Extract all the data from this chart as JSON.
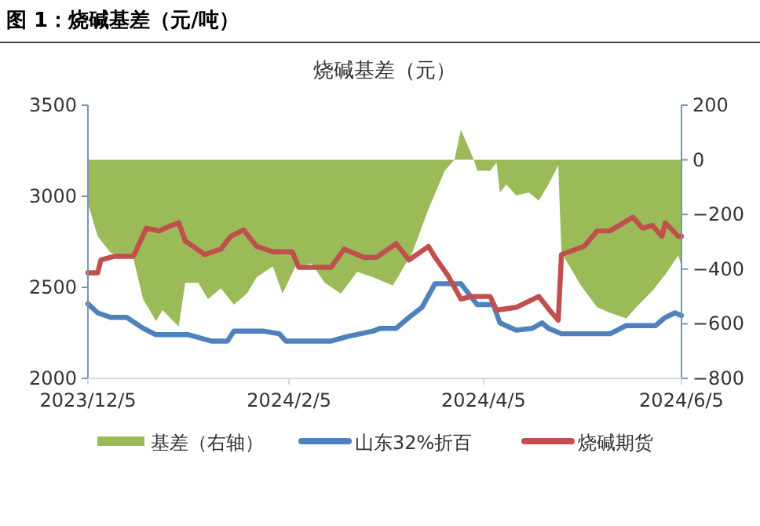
{
  "chart_data": {
    "type": "line",
    "title": "图 1：烧碱基差（元/吨）",
    "subtitle": "烧碱基差（元）",
    "xlim": [
      "2023-12-05",
      "2024-06-05"
    ],
    "xticks": [
      {
        "value": "2023-12-05",
        "label": "2023/12/5"
      },
      {
        "value": "2024-02-05",
        "label": "2024/2/5"
      },
      {
        "value": "2024-04-05",
        "label": "2024/4/5"
      },
      {
        "value": "2024-06-05",
        "label": "2024/6/5"
      }
    ],
    "ylim": [
      2000,
      3500
    ],
    "yticks": [
      2000,
      2500,
      3000,
      3500
    ],
    "y2lim": [
      -800,
      200
    ],
    "y2ticks": [
      -800,
      -600,
      -400,
      -200,
      0,
      200
    ],
    "grid": false,
    "legend": "bottom",
    "marker": "none",
    "series": [
      {
        "name": "基差（右轴）",
        "type": "area",
        "axis": "y2",
        "color": "#9bbb59",
        "x": [
          "2023-12-05",
          "2023-12-08",
          "2023-12-12",
          "2023-12-19",
          "2023-12-22",
          "2023-12-26",
          "2023-12-28",
          "2024-01-02",
          "2024-01-04",
          "2024-01-08",
          "2024-01-11",
          "2024-01-15",
          "2024-01-19",
          "2024-01-23",
          "2024-01-26",
          "2024-01-31",
          "2024-02-03",
          "2024-02-07",
          "2024-02-12",
          "2024-02-16",
          "2024-02-21",
          "2024-02-26",
          "2024-03-02",
          "2024-03-08",
          "2024-03-14",
          "2024-03-19",
          "2024-03-24",
          "2024-03-27",
          "2024-03-29",
          "2024-04-02",
          "2024-04-03",
          "2024-04-07",
          "2024-04-09",
          "2024-04-10",
          "2024-04-12",
          "2024-04-15",
          "2024-04-19",
          "2024-04-22",
          "2024-04-25",
          "2024-04-28",
          "2024-04-29",
          "2024-05-05",
          "2024-05-10",
          "2024-05-14",
          "2024-05-19",
          "2024-05-22",
          "2024-05-27",
          "2024-05-31",
          "2024-06-04",
          "2024-06-05"
        ],
        "values": [
          -160,
          -280,
          -340,
          -360,
          -510,
          -590,
          -550,
          -610,
          -450,
          -450,
          -510,
          -470,
          -530,
          -490,
          -430,
          -390,
          -490,
          -390,
          -380,
          -450,
          -490,
          -410,
          -430,
          -460,
          -340,
          -180,
          -40,
          0,
          110,
          0,
          -40,
          -40,
          -10,
          -120,
          -90,
          -130,
          -120,
          -150,
          -90,
          -20,
          -340,
          -460,
          -540,
          -560,
          -580,
          -540,
          -480,
          -420,
          -350,
          -390
        ]
      },
      {
        "name": "山东32%折百",
        "axis": "y",
        "color": "#4f81bd",
        "x": [
          "2023-12-05",
          "2023-12-08",
          "2023-12-12",
          "2023-12-17",
          "2023-12-22",
          "2023-12-26",
          "2024-01-05",
          "2024-01-12",
          "2024-01-17",
          "2024-01-19",
          "2024-01-28",
          "2024-02-02",
          "2024-02-04",
          "2024-02-18",
          "2024-02-23",
          "2024-03-02",
          "2024-03-04",
          "2024-03-09",
          "2024-03-13",
          "2024-03-17",
          "2024-03-21",
          "2024-03-29",
          "2024-04-03",
          "2024-04-08",
          "2024-04-10",
          "2024-04-15",
          "2024-04-20",
          "2024-04-23",
          "2024-04-25",
          "2024-04-29",
          "2024-05-14",
          "2024-05-19",
          "2024-05-28",
          "2024-05-31",
          "2024-06-03",
          "2024-06-05"
        ],
        "values": [
          2410,
          2360,
          2335,
          2335,
          2275,
          2240,
          2240,
          2205,
          2205,
          2260,
          2260,
          2245,
          2205,
          2205,
          2230,
          2260,
          2275,
          2275,
          2335,
          2390,
          2520,
          2520,
          2405,
          2405,
          2305,
          2265,
          2275,
          2305,
          2275,
          2245,
          2245,
          2290,
          2290,
          2335,
          2360,
          2345
        ]
      },
      {
        "name": "烧碱期货",
        "axis": "y",
        "color": "#c0504d",
        "x": [
          "2023-12-05",
          "2023-12-08",
          "2023-12-09",
          "2023-12-13",
          "2023-12-19",
          "2023-12-23",
          "2023-12-27",
          "2023-12-30",
          "2024-01-02",
          "2024-01-04",
          "2024-01-10",
          "2024-01-15",
          "2024-01-18",
          "2024-01-22",
          "2024-01-26",
          "2024-01-31",
          "2024-02-06",
          "2024-02-08",
          "2024-02-18",
          "2024-02-22",
          "2024-02-28",
          "2024-03-03",
          "2024-03-09",
          "2024-03-13",
          "2024-03-19",
          "2024-03-21",
          "2024-03-25",
          "2024-03-29",
          "2024-04-01",
          "2024-04-07",
          "2024-04-09",
          "2024-04-15",
          "2024-04-22",
          "2024-04-26",
          "2024-04-28",
          "2024-04-29",
          "2024-05-06",
          "2024-05-10",
          "2024-05-14",
          "2024-05-21",
          "2024-05-24",
          "2024-05-27",
          "2024-05-30",
          "2024-05-31",
          "2024-06-04",
          "2024-06-05"
        ],
        "values": [
          2580,
          2580,
          2650,
          2670,
          2670,
          2825,
          2810,
          2835,
          2855,
          2755,
          2680,
          2710,
          2780,
          2815,
          2725,
          2695,
          2695,
          2610,
          2610,
          2710,
          2665,
          2665,
          2740,
          2650,
          2725,
          2665,
          2565,
          2435,
          2450,
          2450,
          2375,
          2390,
          2450,
          2360,
          2320,
          2680,
          2725,
          2810,
          2810,
          2885,
          2825,
          2840,
          2780,
          2855,
          2780,
          2780
        ]
      }
    ]
  }
}
